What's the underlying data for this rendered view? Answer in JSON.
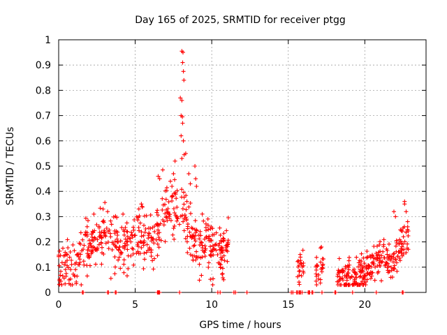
{
  "chart_data": {
    "type": "scatter",
    "title": "Day 165 of 2025, SRMTID for receiver ptgg",
    "xlabel": "GPS time / hours",
    "ylabel": "SRMTID / TECUs",
    "xlim": [
      0,
      24
    ],
    "ylim": [
      0,
      1
    ],
    "x_ticks": [
      0,
      5,
      10,
      15,
      20
    ],
    "x_tick_labels": [
      "0",
      "5",
      "10",
      "15",
      "20"
    ],
    "y_ticks": [
      0,
      0.1,
      0.2,
      0.3,
      0.4,
      0.5,
      0.6,
      0.7,
      0.8,
      0.9,
      1
    ],
    "y_tick_labels": [
      "0",
      "0.1",
      "0.2",
      "0.3",
      "0.4",
      "0.5",
      "0.6",
      "0.7",
      "0.8",
      "0.9",
      "1"
    ],
    "grid": true,
    "marker": "+",
    "color": "#ff0000",
    "series": [
      {
        "name": "SRMTID",
        "segments": [
          {
            "x_start": 0.0,
            "x_end": 10.8,
            "baseline": [
              [
                0,
                0.1
              ],
              [
                1,
                0.12
              ],
              [
                1.8,
                0.18
              ],
              [
                3,
                0.22
              ],
              [
                4,
                0.16
              ],
              [
                5,
                0.22
              ],
              [
                5.8,
                0.24
              ],
              [
                6.3,
                0.2
              ],
              [
                6.6,
                0.28
              ],
              [
                7.2,
                0.33
              ],
              [
                7.8,
                0.35
              ],
              [
                8.3,
                0.3
              ],
              [
                8.8,
                0.2
              ],
              [
                10.2,
                0.17
              ],
              [
                10.8,
                0.12
              ]
            ],
            "spread": 0.055,
            "count": 520
          },
          {
            "x_start": 10.5,
            "x_end": 11.1,
            "baseline": [
              [
                10.5,
                0.12
              ],
              [
                11.1,
                0.2
              ]
            ],
            "spread": 0.04,
            "count": 25
          },
          {
            "x_start": 15.6,
            "x_end": 16.0,
            "baseline": [
              [
                15.6,
                0.08
              ],
              [
                16.0,
                0.13
              ]
            ],
            "spread": 0.03,
            "count": 22
          },
          {
            "x_start": 16.8,
            "x_end": 17.3,
            "baseline": [
              [
                16.8,
                0.08
              ],
              [
                17.3,
                0.12
              ]
            ],
            "spread": 0.03,
            "count": 25
          },
          {
            "x_start": 18.2,
            "x_end": 22.9,
            "baseline": [
              [
                18.2,
                0.07
              ],
              [
                19.0,
                0.06
              ],
              [
                20.0,
                0.08
              ],
              [
                21.0,
                0.14
              ],
              [
                21.8,
                0.12
              ],
              [
                22.4,
                0.2
              ],
              [
                22.9,
                0.22
              ]
            ],
            "spread": 0.035,
            "count": 260
          }
        ],
        "peak_points": [
          {
            "x": 8.05,
            "y": 0.955
          },
          {
            "x": 8.12,
            "y": 0.95
          },
          {
            "x": 8.1,
            "y": 0.91
          },
          {
            "x": 8.15,
            "y": 0.875
          },
          {
            "x": 8.18,
            "y": 0.84
          },
          {
            "x": 7.95,
            "y": 0.77
          },
          {
            "x": 8.05,
            "y": 0.76
          },
          {
            "x": 8.0,
            "y": 0.7
          },
          {
            "x": 8.08,
            "y": 0.695
          },
          {
            "x": 8.1,
            "y": 0.67
          },
          {
            "x": 8.0,
            "y": 0.62
          },
          {
            "x": 8.15,
            "y": 0.6
          },
          {
            "x": 8.2,
            "y": 0.545
          },
          {
            "x": 8.3,
            "y": 0.55
          },
          {
            "x": 8.05,
            "y": 0.53
          },
          {
            "x": 7.6,
            "y": 0.52
          },
          {
            "x": 7.5,
            "y": 0.47
          },
          {
            "x": 8.5,
            "y": 0.47
          },
          {
            "x": 8.9,
            "y": 0.5
          },
          {
            "x": 8.95,
            "y": 0.45
          },
          {
            "x": 9.0,
            "y": 0.42
          },
          {
            "x": 6.8,
            "y": 0.485
          },
          {
            "x": 6.6,
            "y": 0.45
          },
          {
            "x": 6.5,
            "y": 0.46
          },
          {
            "x": 7.3,
            "y": 0.44
          },
          {
            "x": 7.4,
            "y": 0.42
          },
          {
            "x": 8.6,
            "y": 0.43
          },
          {
            "x": 5.4,
            "y": 0.35
          },
          {
            "x": 5.45,
            "y": 0.34
          },
          {
            "x": 22.6,
            "y": 0.36
          },
          {
            "x": 22.6,
            "y": 0.35
          },
          {
            "x": 22.7,
            "y": 0.32
          },
          {
            "x": 22.0,
            "y": 0.3
          },
          {
            "x": 21.9,
            "y": 0.32
          },
          {
            "x": 22.8,
            "y": 0.28
          },
          {
            "x": 2.9,
            "y": 0.33
          },
          {
            "x": 3.2,
            "y": 0.32
          },
          {
            "x": 2.3,
            "y": 0.31
          },
          {
            "x": 4.2,
            "y": 0.31
          }
        ],
        "zero_points_x": [
          1.55,
          1.6,
          3.2,
          3.25,
          3.7,
          3.75,
          6.45,
          6.5,
          6.55,
          6.6,
          7.9,
          10.4,
          10.55,
          11.45,
          11.55,
          12.3,
          15.2,
          15.3,
          15.55,
          15.6,
          15.7,
          15.75,
          15.8,
          15.9,
          16.3,
          16.35,
          16.4,
          16.55,
          16.6,
          17.2,
          18.05,
          18.1,
          19.2,
          20.75,
          22.45,
          22.5
        ]
      }
    ]
  }
}
